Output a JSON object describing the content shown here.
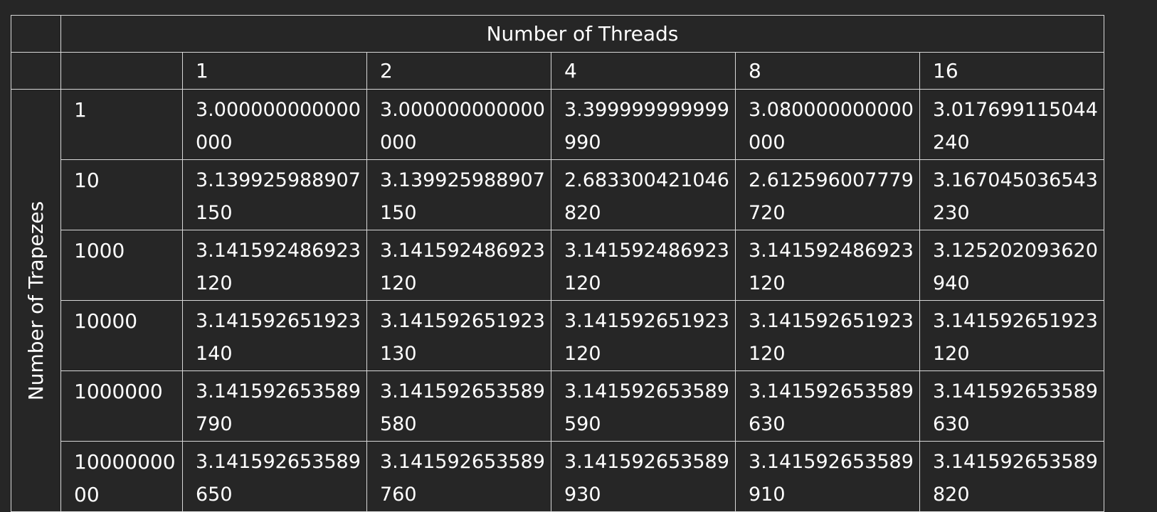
{
  "table": {
    "column_group_title": "Number of Threads",
    "row_group_title": "Number of Trapezes",
    "thread_headers": [
      "1",
      "2",
      "4",
      "8",
      "16"
    ],
    "rows": [
      {
        "trapezes": "1",
        "values": [
          "3.000000000000000",
          "3.000000000000000",
          "3.399999999999990",
          "3.080000000000000",
          "3.017699115044240"
        ]
      },
      {
        "trapezes": "10",
        "values": [
          "3.139925988907150",
          "3.139925988907150",
          "2.683300421046820",
          "2.612596007779720",
          "3.167045036543230"
        ]
      },
      {
        "trapezes": "1000",
        "values": [
          "3.141592486923120",
          "3.141592486923120",
          "3.141592486923120",
          "3.141592486923120",
          "3.125202093620940"
        ]
      },
      {
        "trapezes": "10000",
        "values": [
          "3.141592651923140",
          "3.141592651923130",
          "3.141592651923120",
          "3.141592651923120",
          "3.141592651923120"
        ]
      },
      {
        "trapezes": "1000000",
        "values": [
          "3.141592653589790",
          "3.141592653589580",
          "3.141592653589590",
          "3.141592653589630",
          "3.141592653589630"
        ]
      },
      {
        "trapezes": "1000000000",
        "values": [
          "3.141592653589650",
          "3.141592653589760",
          "3.141592653589930",
          "3.141592653589910",
          "3.141592653589820"
        ]
      }
    ],
    "colors": {
      "background": "#262626",
      "border": "#d8d8d8",
      "text": "#ffffff"
    }
  }
}
